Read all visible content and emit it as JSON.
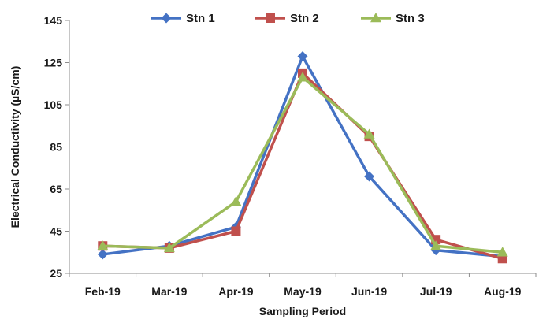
{
  "chart_data": {
    "type": "line",
    "title": "",
    "xlabel": "Sampling Period",
    "ylabel": "Electrical Conductivity (µS/cm)",
    "categories": [
      "Feb-19",
      "Mar-19",
      "Apr-19",
      "May-19",
      "Jun-19",
      "Jul-19",
      "Aug-19"
    ],
    "ylim": [
      25,
      145
    ],
    "yticks": [
      25,
      45,
      65,
      85,
      105,
      125,
      145
    ],
    "ytick_labels": [
      "25",
      "45",
      "65",
      "85",
      "105",
      "125",
      "145"
    ],
    "grid": false,
    "legend_position": "top",
    "series": [
      {
        "name": "Stn 1",
        "color": "#4472C4",
        "marker": "diamond",
        "values": [
          34,
          38,
          47,
          128,
          71,
          36,
          33
        ]
      },
      {
        "name": "Stn 2",
        "color": "#C0504D",
        "marker": "square",
        "values": [
          38,
          37,
          45,
          120,
          90,
          41,
          32
        ]
      },
      {
        "name": "Stn 3",
        "color": "#9BBB59",
        "marker": "triangle",
        "values": [
          38,
          37,
          59,
          118,
          91,
          38,
          35
        ]
      }
    ]
  }
}
